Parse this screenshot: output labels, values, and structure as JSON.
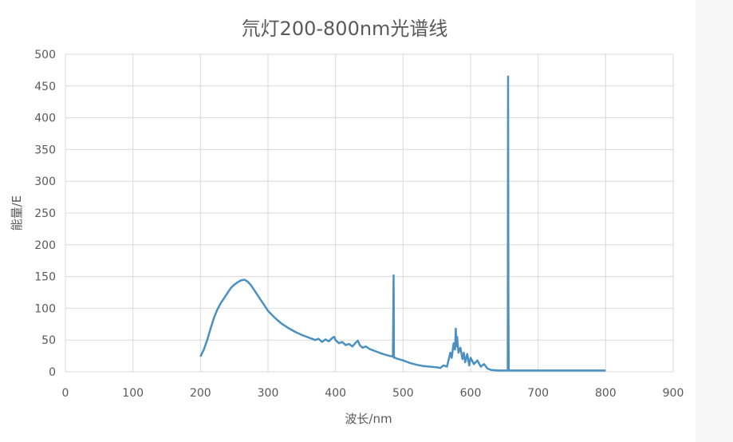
{
  "chart_data": {
    "type": "line",
    "title": "氘灯200-800nm光谱线",
    "xlabel": "波长/nm",
    "ylabel": "能量/E",
    "xlim": [
      0,
      900
    ],
    "ylim": [
      0,
      500
    ],
    "x_ticks": [
      "0",
      "100",
      "200",
      "300",
      "400",
      "500",
      "600",
      "700",
      "800",
      "900"
    ],
    "y_ticks": [
      "0",
      "50",
      "100",
      "150",
      "200",
      "250",
      "300",
      "350",
      "400",
      "450",
      "500"
    ],
    "grid": true,
    "legend": "none",
    "line_color": "#4a90c2",
    "series": [
      {
        "x": [
          200,
          205,
          210,
          215,
          220,
          225,
          230,
          235,
          240,
          245,
          250,
          255,
          260,
          265,
          270,
          275,
          280,
          285,
          290,
          295,
          300,
          310,
          320,
          330,
          340,
          350,
          360,
          370,
          375,
          380,
          385,
          390,
          395,
          398,
          400,
          405,
          410,
          415,
          420,
          425,
          430,
          433,
          436,
          440,
          445,
          450,
          460,
          470,
          480,
          485,
          486,
          486.5,
          487,
          490,
          500,
          510,
          520,
          530,
          540,
          550,
          555,
          560,
          565,
          570,
          572,
          575,
          577,
          578,
          579,
          580,
          582,
          585,
          588,
          590,
          592,
          595,
          598,
          600,
          605,
          610,
          615,
          620,
          625,
          630,
          640,
          650,
          655,
          655.5,
          656,
          656.5,
          657,
          657.5,
          658,
          660,
          680,
          700,
          750,
          800
        ],
        "values": [
          24,
          35,
          50,
          68,
          85,
          98,
          108,
          116,
          124,
          132,
          137,
          141,
          144,
          145,
          142,
          136,
          128,
          120,
          112,
          104,
          96,
          85,
          76,
          69,
          63,
          58,
          54,
          50,
          52,
          47,
          51,
          48,
          53,
          55,
          50,
          45,
          47,
          42,
          44,
          40,
          46,
          49,
          42,
          38,
          40,
          36,
          32,
          28,
          25,
          24,
          152,
          22,
          23,
          21,
          18,
          14,
          11,
          9,
          8,
          7,
          6,
          10,
          8,
          30,
          22,
          45,
          35,
          68,
          40,
          55,
          30,
          38,
          20,
          30,
          15,
          28,
          10,
          22,
          12,
          18,
          8,
          12,
          5,
          3,
          2,
          2,
          2,
          465,
          118,
          5,
          2,
          2,
          2,
          2,
          2,
          2,
          2,
          2
        ]
      }
    ]
  }
}
